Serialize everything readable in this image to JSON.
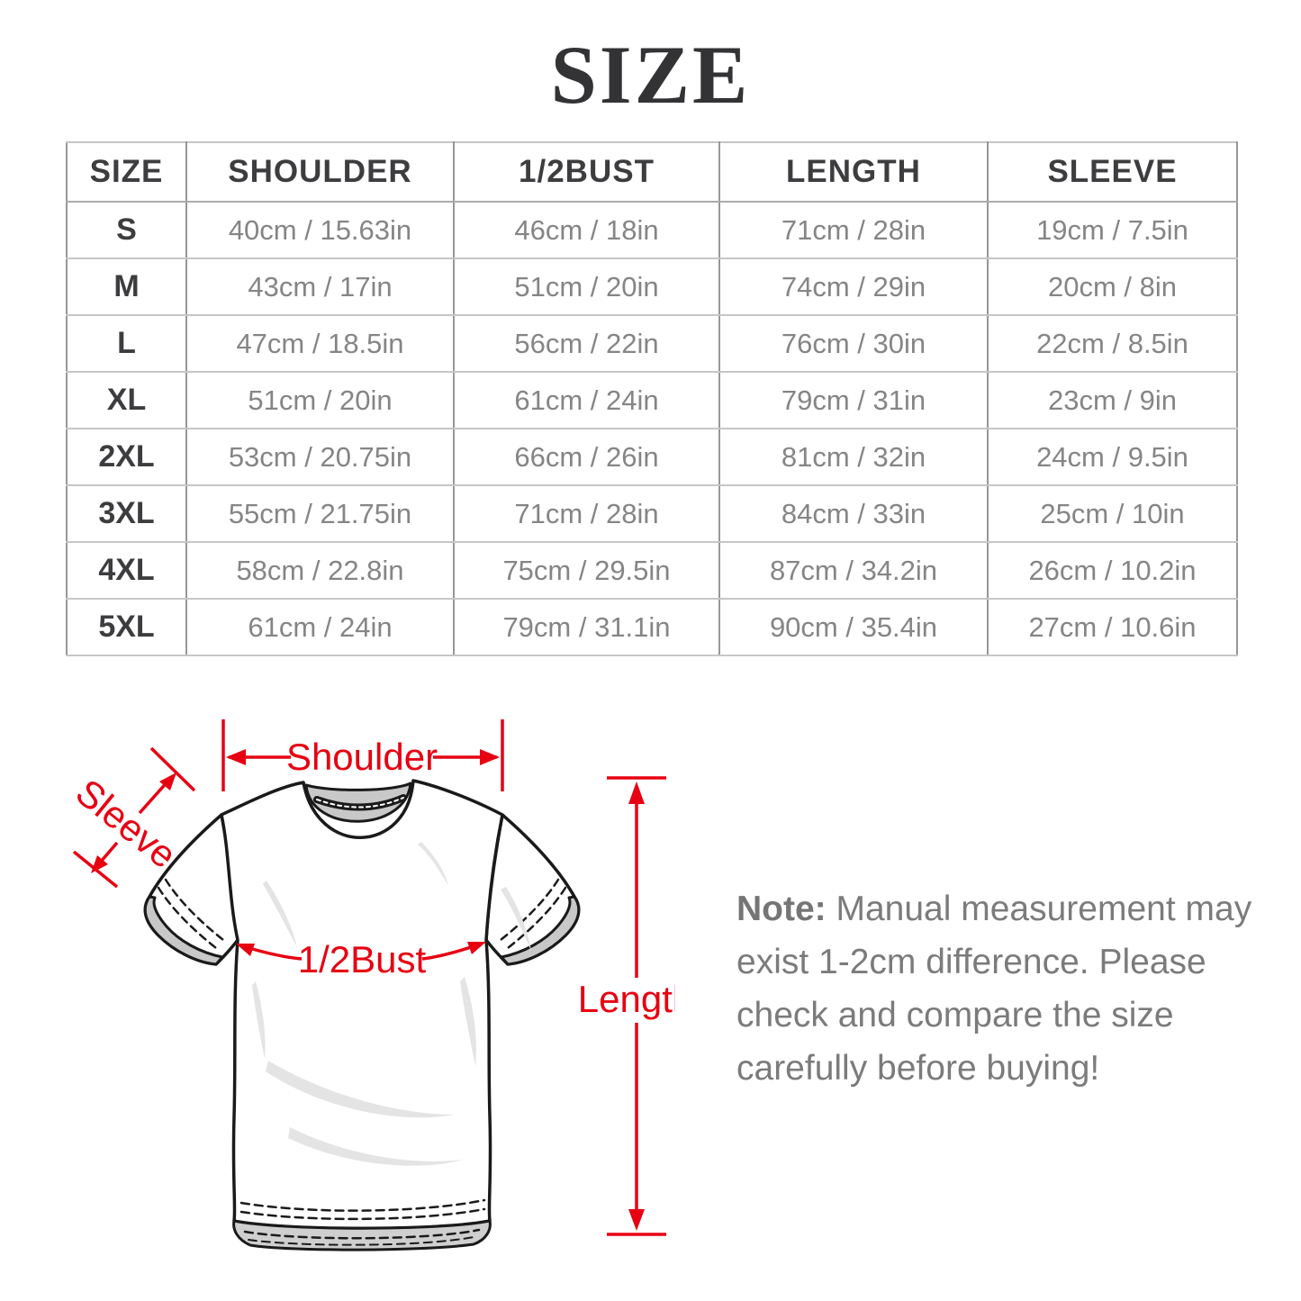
{
  "page": {
    "title": "SIZE"
  },
  "table": {
    "headers": [
      "SIZE",
      "SHOULDER",
      "1/2BUST",
      "LENGTH",
      "SLEEVE"
    ],
    "rows": [
      [
        "S",
        "40cm / 15.63in",
        "46cm / 18in",
        "71cm / 28in",
        "19cm / 7.5in"
      ],
      [
        "M",
        "43cm / 17in",
        "51cm / 20in",
        "74cm / 29in",
        "20cm / 8in"
      ],
      [
        "L",
        "47cm / 18.5in",
        "56cm / 22in",
        "76cm / 30in",
        "22cm / 8.5in"
      ],
      [
        "XL",
        "51cm / 20in",
        "61cm / 24in",
        "79cm / 31in",
        "23cm / 9in"
      ],
      [
        "2XL",
        "53cm / 20.75in",
        "66cm / 26in",
        "81cm / 32in",
        "24cm / 9.5in"
      ],
      [
        "3XL",
        "55cm / 21.75in",
        "71cm / 28in",
        "84cm / 33in",
        "25cm / 10in"
      ],
      [
        "4XL",
        "58cm / 22.8in",
        "75cm / 29.5in",
        "87cm / 34.2in",
        "26cm / 10.2in"
      ],
      [
        "5XL",
        "61cm / 24in",
        "79cm / 31.1in",
        "90cm / 35.4in",
        "27cm / 10.6in"
      ]
    ]
  },
  "diagram": {
    "labels": {
      "shoulder": "Shoulder",
      "sleeve": "Sleeve",
      "bust": "1/2Bust",
      "length": "Length"
    },
    "accent_color": "#e60012"
  },
  "note": {
    "label": "Note:",
    "lines": [
      " Manual measurement may",
      "exist 1-2cm difference. Please",
      "check and compare the size",
      "carefully before buying!"
    ]
  }
}
